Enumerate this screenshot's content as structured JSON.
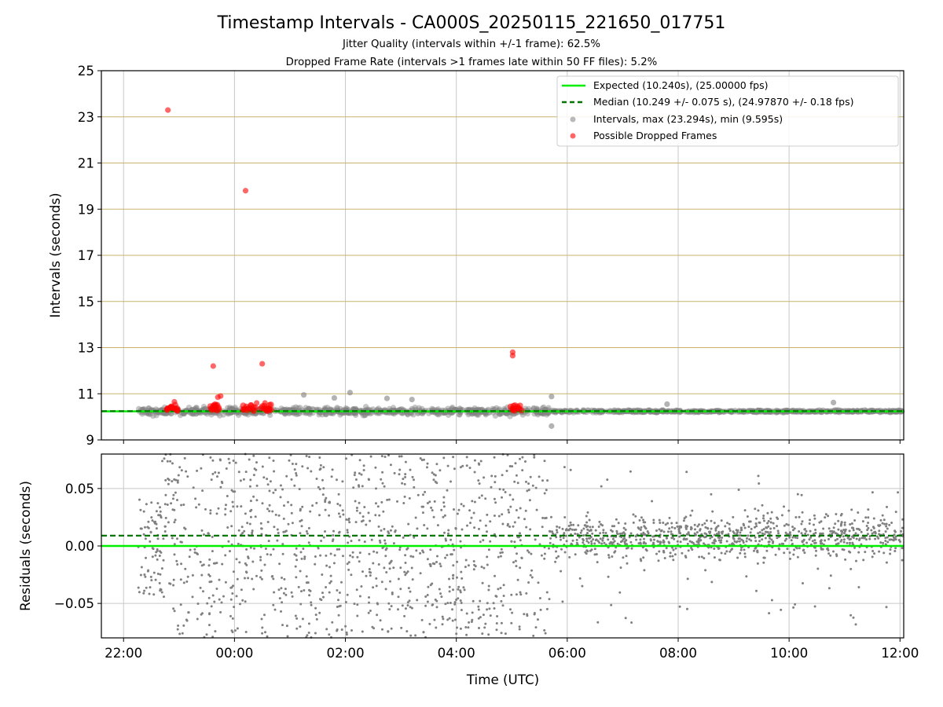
{
  "title": "Timestamp Intervals - CA000S_20250115_221650_017751",
  "subtitle1": "Jitter Quality (intervals within +/-1 frame): 62.5%",
  "subtitle2": "Dropped Frame Rate (intervals >1 frames late within 50 FF files): 5.2%",
  "colors": {
    "expected": "#00ee00",
    "median": "#007700",
    "intervals": "#808080",
    "dropped": "#ff0000",
    "hgrid_top": "#c9b36a",
    "grid": "#c8c8c8"
  },
  "chart_data": [
    {
      "type": "scatter",
      "ylabel": "Intervals (seconds)",
      "ylim": [
        9,
        25
      ],
      "yticks": [
        "9",
        "11",
        "13",
        "15",
        "17",
        "19",
        "21",
        "23",
        "25"
      ],
      "grid": true,
      "legend_position": "top-right",
      "legend": [
        {
          "kind": "line",
          "label": "Expected (10.240s), (25.00000 fps)"
        },
        {
          "kind": "dashed",
          "label": "Median (10.249 +/- 0.075 s), (24.97870 +/- 0.18 fps)"
        },
        {
          "kind": "gray-dot",
          "label": "Intervals, max (23.294s), min (9.595s)"
        },
        {
          "kind": "red-dot",
          "label": "Possible Dropped Frames"
        }
      ],
      "expected": 10.24,
      "median": 10.249,
      "intervals_outliers": [
        {
          "x": "2025-01-16T01:15",
          "y": 10.95
        },
        {
          "x": "2025-01-16T01:48",
          "y": 10.82
        },
        {
          "x": "2025-01-16T02:05",
          "y": 11.05
        },
        {
          "x": "2025-01-16T02:45",
          "y": 10.8
        },
        {
          "x": "2025-01-16T03:12",
          "y": 10.75
        },
        {
          "x": "2025-01-16T05:43",
          "y": 10.88
        },
        {
          "x": "2025-01-16T05:43",
          "y": 9.6
        },
        {
          "x": "2025-01-16T07:48",
          "y": 10.55
        },
        {
          "x": "2025-01-16T10:48",
          "y": 10.62
        }
      ],
      "dropped_frames": [
        {
          "x": "2025-01-15T22:48",
          "y": 23.294
        },
        {
          "x": "2025-01-15T23:37",
          "y": 12.2
        },
        {
          "x": "2025-01-16T00:12",
          "y": 19.8
        },
        {
          "x": "2025-01-16T00:30",
          "y": 12.3
        },
        {
          "x": "2025-01-16T05:01",
          "y": 12.8
        },
        {
          "x": "2025-01-16T05:01",
          "y": 12.65
        },
        {
          "x": "2025-01-15T23:45",
          "y": 10.9
        },
        {
          "x": "2025-01-15T23:42",
          "y": 10.85
        },
        {
          "x": "2025-01-15T22:55",
          "y": 10.65
        },
        {
          "x": "2025-01-16T00:24",
          "y": 10.6
        },
        {
          "x": "2025-01-16T00:33",
          "y": 10.6
        }
      ],
      "dropped_clusters": [
        {
          "x": "2025-01-15T22:52",
          "y": 10.4
        },
        {
          "x": "2025-01-15T23:40",
          "y": 10.4
        },
        {
          "x": "2025-01-16T00:16",
          "y": 10.4
        },
        {
          "x": "2025-01-16T00:35",
          "y": 10.4
        },
        {
          "x": "2025-01-16T05:05",
          "y": 10.4
        }
      ]
    },
    {
      "type": "scatter",
      "xlabel": "Time (UTC)",
      "ylabel": "Residuals (seconds)",
      "ylim": [
        -0.08,
        0.08
      ],
      "yticks": [
        "0.05",
        "0.00",
        "−0.05"
      ],
      "xticks": [
        "22:00",
        "00:00",
        "02:00",
        "04:00",
        "06:00",
        "08:00",
        "10:00",
        "12:00"
      ],
      "xlim": [
        "2025-01-15T21:36",
        "2025-01-16T12:04"
      ],
      "data_start": "2025-01-15T22:16",
      "expected": 0.0,
      "median": 0.009,
      "spread_before_0540": 0.08,
      "spread_after_0540": 0.025
    }
  ]
}
